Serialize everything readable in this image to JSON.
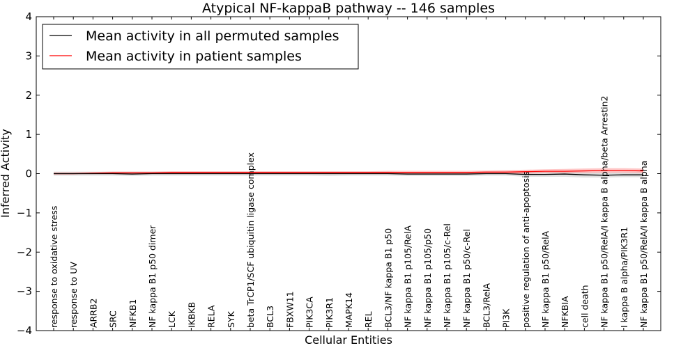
{
  "chart_data": {
    "type": "line",
    "title": "Atypical NF-kappaB pathway -- 146 samples",
    "xlabel": "Cellular Entities",
    "ylabel": "Inferred Activity",
    "ylim": [
      -4,
      4
    ],
    "yticks": [
      -4,
      -3,
      -2,
      -1,
      0,
      1,
      2,
      3,
      4
    ],
    "ytick_labels": [
      "−4",
      "−3",
      "−2",
      "−1",
      "0",
      "1",
      "2",
      "3",
      "4"
    ],
    "grid": false,
    "legend_position": "top-left",
    "categories": [
      "response to oxidative stress",
      "response to UV",
      "ARRB2",
      "SRC",
      "NFKB1",
      "NF kappa B1 p50 dimer",
      "LCK",
      "IKBKB",
      "RELA",
      "SYK",
      "beta TrCP1/SCF ubiquitin ligase complex",
      "BCL3",
      "FBXW11",
      "PIK3CA",
      "PIK3R1",
      "MAPK14",
      "REL",
      "BCL3/NF kappa B1 p50",
      "NF kappa B1 p105/RelA",
      "NF kappa B1 p105/p50",
      "NF kappa B1 p105/c-Rel",
      "NF kappa B1 p50/c-Rel",
      "BCL3/RelA",
      "PI3K",
      "positive regulation of anti-apoptosis",
      "NF kappa B1 p50/RelA",
      "NFKBIA",
      "cell death",
      "NF kappa B1 p50/RelA/I kappa B alpha/beta Arrestin2",
      "I kappa B alpha/PIK3R1",
      "NF kappa B1 p50/RelA/I kappa B alpha"
    ],
    "series": [
      {
        "name": "Mean activity in all permuted samples",
        "color": "#000000",
        "values": [
          0.0,
          0.0,
          0.0,
          0.0,
          -0.01,
          0.0,
          0.0,
          0.0,
          0.0,
          0.0,
          0.0,
          0.0,
          0.0,
          0.0,
          0.0,
          0.0,
          0.0,
          0.0,
          -0.01,
          -0.01,
          -0.01,
          -0.01,
          0.0,
          0.0,
          -0.02,
          -0.02,
          -0.01,
          -0.03,
          -0.04,
          -0.03,
          -0.03
        ],
        "band_low": [
          -0.05,
          -0.05,
          -0.05,
          -0.05,
          -0.06,
          -0.05,
          -0.05,
          -0.05,
          -0.05,
          -0.05,
          -0.05,
          -0.05,
          -0.05,
          -0.05,
          -0.06,
          -0.05,
          -0.05,
          -0.05,
          -0.06,
          -0.06,
          -0.06,
          -0.06,
          -0.05,
          -0.05,
          -0.08,
          -0.08,
          -0.08,
          -0.1,
          -0.1,
          -0.09,
          -0.09
        ],
        "band_high": [
          0.05,
          0.05,
          0.05,
          0.05,
          0.05,
          0.05,
          0.05,
          0.05,
          0.05,
          0.05,
          0.05,
          0.05,
          0.05,
          0.05,
          0.05,
          0.05,
          0.05,
          0.05,
          0.04,
          0.04,
          0.04,
          0.04,
          0.05,
          0.05,
          0.04,
          0.04,
          0.04,
          0.03,
          0.03,
          0.03,
          0.03
        ]
      },
      {
        "name": "Mean activity in patient samples",
        "color": "#ff0000",
        "values": [
          0.0,
          0.0,
          0.01,
          0.02,
          0.02,
          0.02,
          0.03,
          0.03,
          0.03,
          0.03,
          0.03,
          0.03,
          0.03,
          0.03,
          0.03,
          0.03,
          0.03,
          0.03,
          0.03,
          0.03,
          0.03,
          0.03,
          0.04,
          0.04,
          0.05,
          0.06,
          0.06,
          0.07,
          0.08,
          0.08,
          0.07
        ],
        "band_low": [
          -0.02,
          -0.02,
          -0.01,
          0.0,
          0.0,
          0.0,
          0.0,
          0.0,
          0.0,
          0.0,
          0.0,
          0.0,
          0.0,
          0.0,
          0.0,
          0.0,
          0.0,
          0.0,
          0.0,
          0.0,
          0.0,
          0.0,
          0.0,
          0.0,
          0.0,
          0.01,
          0.01,
          0.01,
          0.02,
          0.02,
          0.01
        ],
        "band_high": [
          0.03,
          0.03,
          0.04,
          0.05,
          0.05,
          0.05,
          0.06,
          0.06,
          0.06,
          0.06,
          0.06,
          0.06,
          0.06,
          0.06,
          0.06,
          0.06,
          0.06,
          0.07,
          0.07,
          0.07,
          0.07,
          0.07,
          0.08,
          0.09,
          0.1,
          0.11,
          0.12,
          0.13,
          0.14,
          0.14,
          0.13
        ]
      }
    ]
  }
}
